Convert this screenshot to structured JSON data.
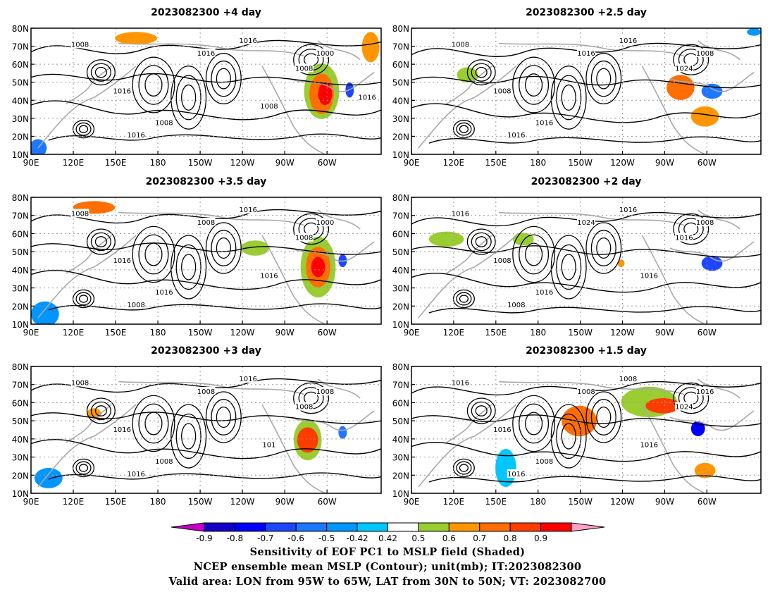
{
  "panels": [
    {
      "title": "2023082300  +4 day"
    },
    {
      "title": "2023082300  +2.5 day"
    },
    {
      "title": "2023082300  +3.5 day"
    },
    {
      "title": "2023082300  +2 day"
    },
    {
      "title": "2023082300  +3 day"
    },
    {
      "title": "2023082300  +1.5 day"
    }
  ],
  "x_ticks": [
    "90E",
    "120E",
    "150E",
    "180",
    "150W",
    "120W",
    "90W",
    "60W"
  ],
  "y_ticks": [
    "80N",
    "70N",
    "60N",
    "50N",
    "40N",
    "30N",
    "20N",
    "10N"
  ],
  "contour_labels": [
    [
      "1008",
      "1016",
      "1016",
      "1008",
      "1008",
      "1016",
      "1016",
      "1000",
      "1008",
      "1016"
    ],
    [
      "1008",
      "1008",
      "1016",
      "1016",
      "1024",
      "1016",
      "1016",
      "1008"
    ],
    [
      "1008",
      "1016",
      "1016",
      "1016",
      "1008",
      "1008",
      "1008",
      "1000",
      "1016"
    ],
    [
      "1016",
      "1008",
      "1016",
      "1016",
      "1016",
      "1024",
      "1008",
      "1008",
      "1016"
    ],
    [
      "1008",
      "1016",
      "1016",
      "1008",
      "1008",
      "1008",
      "1016",
      "1008",
      "101"
    ],
    [
      "1016",
      "1016",
      "1008",
      "1008",
      "1024",
      "1008",
      "1016",
      "1016",
      "1016"
    ]
  ],
  "colorbar": {
    "colors": [
      "#c800c8",
      "#1400c8",
      "#0000ff",
      "#1e46ff",
      "#1e78ff",
      "#0096ff",
      "#00c8ff",
      "#ffffff",
      "#9acd32",
      "#ff9600",
      "#ff6e00",
      "#ff3c00",
      "#ff0000",
      "#ffa0c8"
    ],
    "labels": [
      "-0.9",
      "-0.8",
      "-0.7",
      "-0.6",
      "-0.5",
      "-0.42",
      "0.42",
      "0.5",
      "0.6",
      "0.7",
      "0.8",
      "0.9"
    ]
  },
  "caption": [
    "Sensitivity of EOF PC1 to MSLP field (Shaded)",
    "NCEP ensemble mean MSLP (Contour); unit(mb); IT:2023082300",
    "Valid area: LON from 95W to 65W, LAT from 30N to 50N; VT: 2023082700"
  ]
}
